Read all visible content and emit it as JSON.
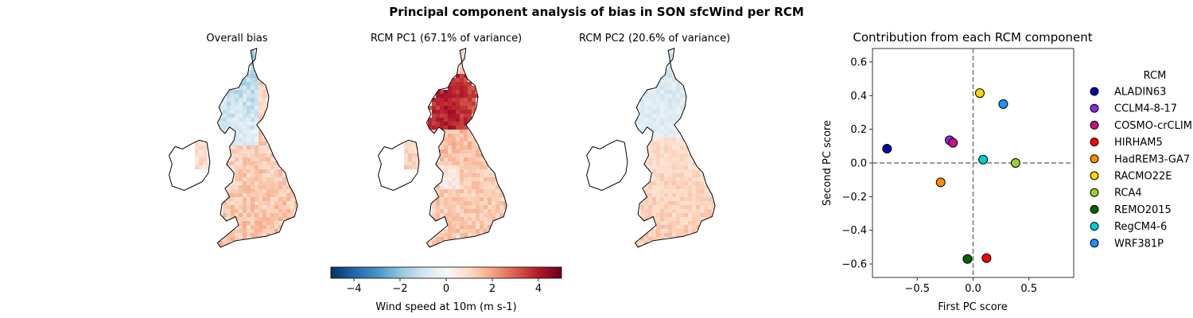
{
  "figure": {
    "title": "Principal component analysis of bias in SON sfcWind per RCM"
  },
  "maps": [
    {
      "title": "Overall bias"
    },
    {
      "title": "RCM PC1 (67.1% of variance)"
    },
    {
      "title": "RCM PC2 (20.6% of variance)"
    }
  ],
  "colorbar": {
    "label": "Wind speed at 10m (m s-1)",
    "ticks": [
      "−4",
      "−2",
      "0",
      "2",
      "4"
    ],
    "tick_values": [
      -4,
      -2,
      0,
      2,
      4
    ],
    "range": [
      -5,
      5
    ],
    "colormap": "RdBu_r",
    "colors": [
      "#053061",
      "#2166ac",
      "#4393c3",
      "#92c5de",
      "#d1e5f0",
      "#f7f7f7",
      "#fddbc7",
      "#f4a582",
      "#d6604d",
      "#b2182b",
      "#67001f"
    ]
  },
  "chart_data": {
    "type": "scatter",
    "title": "Contribution from each RCM component",
    "xlabel": "First PC score",
    "ylabel": "Second PC score",
    "xlim": [
      -0.9,
      0.9
    ],
    "ylim": [
      -0.68,
      0.68
    ],
    "xticks": [
      -0.5,
      0.0,
      0.5
    ],
    "xtick_labels": [
      "−0.5",
      "0.0",
      "0.5"
    ],
    "yticks": [
      -0.6,
      -0.4,
      -0.2,
      0.0,
      0.2,
      0.4,
      0.6
    ],
    "ytick_labels": [
      "−0.6",
      "−0.4",
      "−0.2",
      "0.0",
      "0.2",
      "0.4",
      "0.6"
    ],
    "reference_lines": {
      "x": 0,
      "y": 0,
      "style": "dashed"
    },
    "legend": {
      "title": "RCM",
      "placement": "outside-right"
    },
    "points": [
      {
        "name": "ALADIN63",
        "x": -0.77,
        "y": 0.085,
        "color": "#0000aa"
      },
      {
        "name": "CCLM4-8-17",
        "x": -0.21,
        "y": 0.135,
        "color": "#8a2be2"
      },
      {
        "name": "COSMO-crCLIM",
        "x": -0.18,
        "y": 0.12,
        "color": "#c71585"
      },
      {
        "name": "HIRHAM5",
        "x": 0.12,
        "y": -0.565,
        "color": "#ff0000"
      },
      {
        "name": "HadREM3-GA7",
        "x": -0.29,
        "y": -0.115,
        "color": "#ff8c00"
      },
      {
        "name": "RACMO22E",
        "x": 0.06,
        "y": 0.415,
        "color": "#ffd700"
      },
      {
        "name": "RCA4",
        "x": 0.38,
        "y": 0.0,
        "color": "#9acd32"
      },
      {
        "name": "REMO2015",
        "x": -0.05,
        "y": -0.57,
        "color": "#006400"
      },
      {
        "name": "RegCM4-6",
        "x": 0.09,
        "y": 0.02,
        "color": "#00ced1"
      },
      {
        "name": "WRF381P",
        "x": 0.27,
        "y": 0.35,
        "color": "#1e90ff"
      }
    ]
  }
}
